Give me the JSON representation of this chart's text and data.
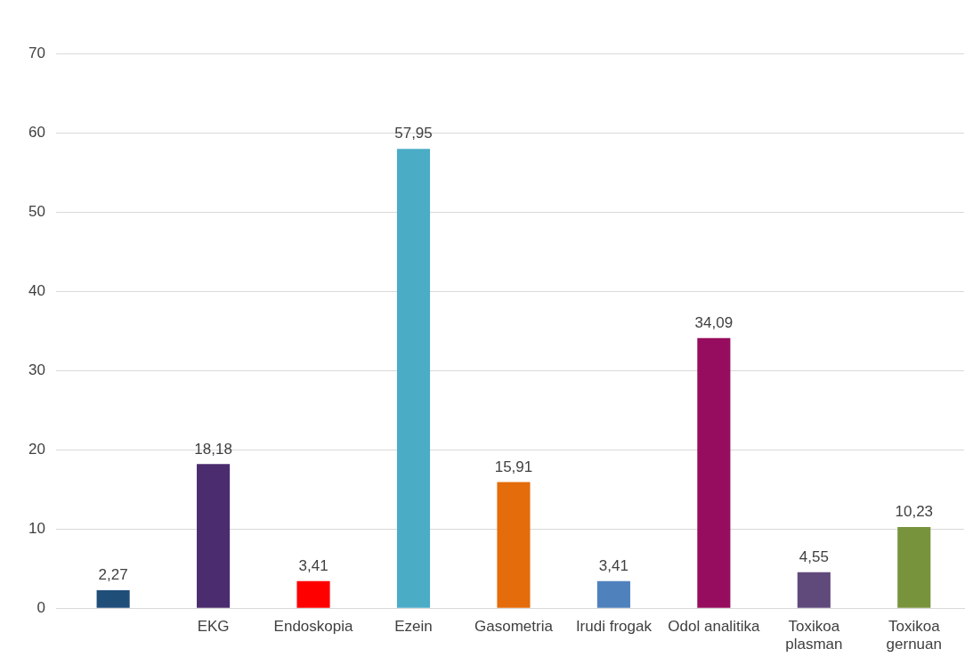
{
  "chart_data": {
    "type": "bar",
    "categories": [
      null,
      "EKG",
      "Endoskopia",
      "Ezein",
      "Gasometria",
      "Irudi frogak",
      "Odol analitika",
      "Toxikoa plasman",
      "Toxikoa gernuan"
    ],
    "values": [
      2.27,
      18.18,
      3.41,
      57.95,
      15.91,
      3.41,
      34.09,
      4.55,
      10.23
    ],
    "colors": [
      "#1f4e79",
      "#4b2c6e",
      "#ff0000",
      "#4bacc6",
      "#e46c0a",
      "#4f81bd",
      "#960c5e",
      "#604a7b",
      "#77933c"
    ],
    "value_labels": [
      "2,27",
      "18,18",
      "3,41",
      "57,95",
      "15,91",
      "3,41",
      "34,09",
      "4,55",
      "10,23"
    ],
    "ylim": [
      0,
      70
    ],
    "yticks": [
      0,
      10,
      20,
      30,
      40,
      50,
      60,
      70
    ],
    "grid": "y",
    "legend": false
  }
}
